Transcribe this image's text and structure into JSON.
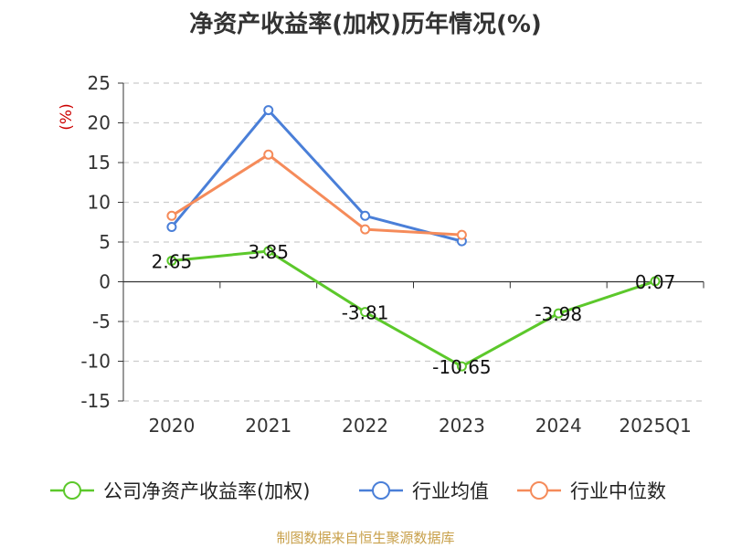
{
  "chart_data": {
    "type": "line",
    "title": "净资产收益率(加权)历年情况(%)",
    "ylabel": "(%)",
    "xlabel": "",
    "categories": [
      "2020",
      "2021",
      "2022",
      "2023",
      "2024",
      "2025Q1"
    ],
    "ylim": [
      -15,
      25
    ],
    "yticks": [
      25,
      20,
      15,
      10,
      5,
      0,
      -5,
      -10,
      -15
    ],
    "grid": true,
    "legend_position": "bottom",
    "series": [
      {
        "name": "公司净资产收益率(加权)",
        "color": "#5cc82b",
        "values": [
          2.65,
          3.85,
          -3.81,
          -10.65,
          -3.98,
          0.07
        ],
        "data_labels": [
          "2.65",
          "3.85",
          "-3.81",
          "-10.65",
          "-3.98",
          "0.07"
        ]
      },
      {
        "name": "行业均值",
        "color": "#4a7fd8",
        "values": [
          6.9,
          21.6,
          8.3,
          5.1,
          null,
          null
        ]
      },
      {
        "name": "行业中位数",
        "color": "#f58b5a",
        "values": [
          8.3,
          16.0,
          6.6,
          5.9,
          null,
          null
        ]
      }
    ]
  },
  "colors": {
    "ylabel": "#cc0000",
    "source": "#c8a04a",
    "grid": "#cccccc",
    "axis": "#333333"
  },
  "footer": {
    "source": "制图数据来自恒生聚源数据库"
  }
}
